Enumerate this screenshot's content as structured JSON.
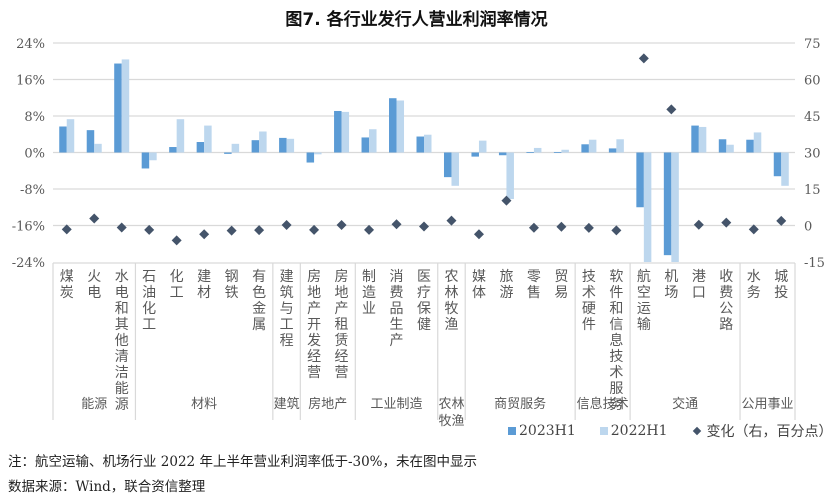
{
  "title": "图7. 各行业发行人营业利润率情况",
  "colors": {
    "series_2023": "#5b9bd5",
    "series_2022": "#bdd7ee",
    "series_change": "#44546a",
    "grid": "#d9d9d9",
    "axis_text": "#595959"
  },
  "legend": {
    "items": [
      {
        "label": "2023H1",
        "marker": "square",
        "color": "#5b9bd5"
      },
      {
        "label": "2022H1",
        "marker": "square",
        "color": "#bdd7ee"
      },
      {
        "label": "变化（右，百分点）",
        "marker": "diamond",
        "color": "#44546a"
      }
    ]
  },
  "notes": {
    "note": "注：航空运输、机场行业 2022 年上半年营业利润率低于-30%，未在图中显示",
    "source": "数据来源：Wind，联合资信整理"
  },
  "chart_data": {
    "type": "bar",
    "title": "图7. 各行业发行人营业利润率情况",
    "xlabel": "",
    "ylabel": "",
    "ylim": [
      -24,
      24
    ],
    "yticks": [
      "24%",
      "16%",
      "8%",
      "0%",
      "-8%",
      "-16%",
      "-24%"
    ],
    "y2lim": [
      -15,
      75
    ],
    "y2ticks": [
      "75",
      "60",
      "45",
      "30",
      "15",
      "0",
      "-15"
    ],
    "grid": true,
    "legend_position": "bottom",
    "categories": [
      "煤炭",
      "火电",
      "水电和其他清洁能源",
      "石油化工",
      "化工",
      "建材",
      "钢铁",
      "有色金属",
      "建筑与工程",
      "房地产开发经营",
      "房地产租赁经营",
      "制造业",
      "消费品生产",
      "医疗保健",
      "农林牧渔",
      "媒体",
      "旅游",
      "零售",
      "贸易",
      "技术硬件",
      "软件和信息技术服务",
      "航空运输",
      "机场",
      "港口",
      "收费公路",
      "水务",
      "城投"
    ],
    "groups": [
      {
        "label": "能源",
        "count": 3
      },
      {
        "label": "材料",
        "count": 5
      },
      {
        "label": "建筑",
        "count": 1
      },
      {
        "label": "房地产",
        "count": 2
      },
      {
        "label": "工业制造",
        "count": 3
      },
      {
        "label": "农林牧渔",
        "count": 1
      },
      {
        "label": "商贸服务",
        "count": 4
      },
      {
        "label": "信息技术",
        "count": 2
      },
      {
        "label": "交通",
        "count": 4
      },
      {
        "label": "公用事业",
        "count": 2
      }
    ],
    "series": [
      {
        "name": "2023H1",
        "axis": "left",
        "type": "bar",
        "unit": "%",
        "values": [
          5.7,
          4.9,
          19.5,
          -3.5,
          1.2,
          2.3,
          -0.3,
          2.7,
          3.2,
          -2.2,
          9.1,
          3.3,
          11.9,
          3.5,
          -5.4,
          -0.9,
          -0.6,
          0.1,
          0.1,
          1.8,
          0.9,
          -12.0,
          -22.5,
          5.9,
          2.9,
          2.8,
          -5.2
        ]
      },
      {
        "name": "2022H1",
        "axis": "left",
        "type": "bar",
        "unit": "%",
        "values": [
          7.3,
          1.9,
          20.4,
          -1.7,
          7.3,
          5.9,
          1.9,
          4.6,
          3.0,
          -0.4,
          8.9,
          5.1,
          11.4,
          3.9,
          -7.3,
          2.6,
          -10.2,
          1.0,
          0.6,
          2.8,
          2.9,
          -30,
          -30,
          5.6,
          1.7,
          4.4,
          -7.3
        ]
      },
      {
        "name": "变化（右，百分点）",
        "axis": "right",
        "type": "scatter",
        "unit": "pp",
        "values": [
          -1.6,
          2.9,
          -0.8,
          -1.8,
          -6.1,
          -3.6,
          -2.1,
          -1.9,
          0.2,
          -1.8,
          0.2,
          -1.8,
          0.5,
          -0.4,
          2.0,
          -3.6,
          10.2,
          -0.9,
          -0.5,
          -1.0,
          -2.0,
          68.7,
          47.7,
          0.3,
          1.2,
          -1.6,
          1.9
        ]
      }
    ],
    "annotations": [
      "航空运输、机场行业 2022 年上半年营业利润率低于-30%，未在图中显示"
    ]
  }
}
